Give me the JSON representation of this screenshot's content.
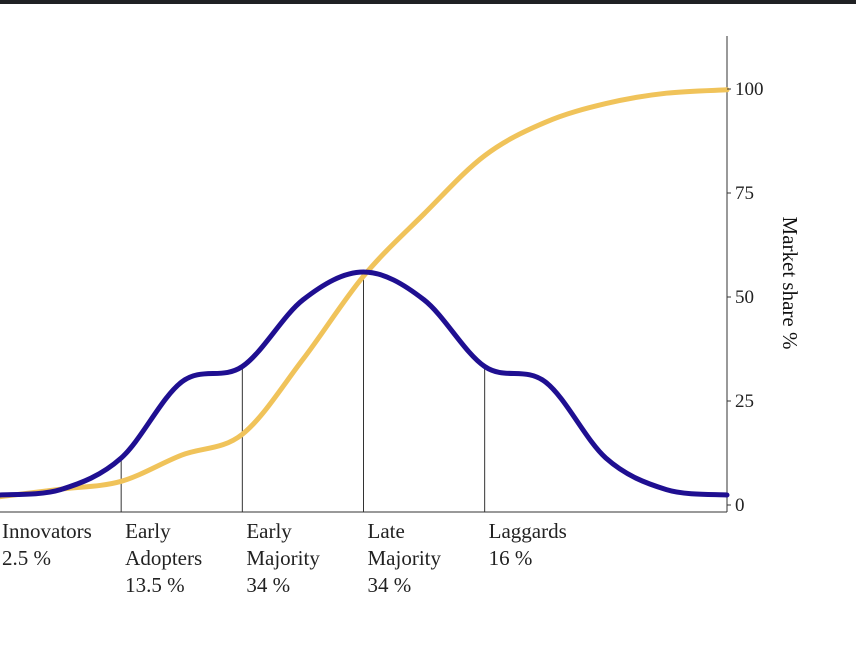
{
  "chart_data": {
    "type": "line",
    "title": "",
    "xlabel": "",
    "ylabel": "Market share %",
    "ylim": [
      0,
      100
    ],
    "yticks": [
      0,
      25,
      50,
      75,
      100
    ],
    "x_range": [
      -3,
      3
    ],
    "grid": false,
    "legend": "none",
    "series": [
      {
        "kind": "adoption-curve",
        "color": "#1f0f91",
        "x": [
          -3,
          -2.5,
          -2,
          -1.5,
          -1,
          -0.5,
          0,
          0.5,
          1,
          1.5,
          2,
          2.5,
          3
        ],
        "y": [
          2.4,
          3.7,
          11.3,
          29.6,
          33.3,
          49.3,
          56.0,
          49.3,
          33.3,
          29.6,
          11.3,
          3.7,
          2.4
        ]
      },
      {
        "kind": "market-share-curve",
        "color": "#f0c35a",
        "x": [
          -3,
          -2.5,
          -2,
          -1.5,
          -1,
          -0.5,
          0,
          0.5,
          1,
          1.5,
          2,
          2.5,
          3
        ],
        "y": [
          2.0,
          3.8,
          5.7,
          12.0,
          17.0,
          35.0,
          55.0,
          70.0,
          84.0,
          92.0,
          96.5,
          99.0,
          99.8
        ]
      }
    ],
    "segments": [
      {
        "name": "Innovators",
        "lines": [
          "Innovators",
          "2.5 %"
        ],
        "boundary": -3.0
      },
      {
        "name": "Early Adopters",
        "lines": [
          "Early",
          "Adopters",
          "13.5 %"
        ],
        "boundary": -2.0
      },
      {
        "name": "Early Majority",
        "lines": [
          "Early",
          "Majority",
          "34 %"
        ],
        "boundary": -1.0
      },
      {
        "name": "Late Majority",
        "lines": [
          "Late",
          "Majority",
          "34 %"
        ],
        "boundary": 0.0
      },
      {
        "name": "Laggards",
        "lines": [
          "Laggards",
          "16 %"
        ],
        "boundary": 1.0
      }
    ]
  }
}
